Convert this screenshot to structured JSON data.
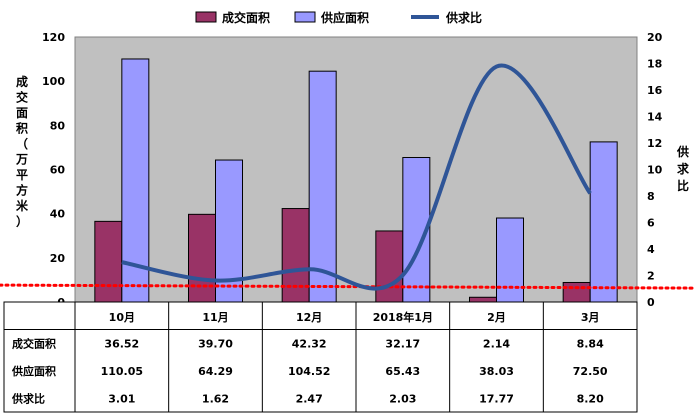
{
  "chart_data": {
    "type": "bar",
    "categories": [
      "10月",
      "11月",
      "12月",
      "2018年1月",
      "2月",
      "3月"
    ],
    "series": [
      {
        "name": "成交面积",
        "kind": "bar",
        "axis": "left",
        "color": "#993366",
        "values": [
          36.52,
          39.7,
          42.32,
          32.17,
          2.14,
          8.84
        ]
      },
      {
        "name": "供应面积",
        "kind": "bar",
        "axis": "left",
        "color": "#9999ff",
        "values": [
          110.05,
          64.29,
          104.52,
          65.43,
          38.03,
          72.5
        ]
      },
      {
        "name": "供求比",
        "kind": "line",
        "axis": "right",
        "color": "#2f5597",
        "values": [
          3.01,
          1.62,
          2.47,
          2.03,
          17.77,
          8.2
        ]
      }
    ],
    "reference_line": {
      "axis": "right",
      "value": 1.2,
      "style": "dotted",
      "color": "#ff0000"
    },
    "ylabel": "成交面积（万平方米）",
    "y2label": "供求比",
    "ylim": [
      0,
      120
    ],
    "y2lim": [
      0,
      20
    ],
    "yticks": [
      "0",
      "20",
      "40",
      "60",
      "80",
      "100",
      "120"
    ],
    "y2ticks": [
      "0",
      "2",
      "4",
      "6",
      "8",
      "10",
      "12",
      "14",
      "16",
      "18",
      "20"
    ],
    "legend_position": "top",
    "plot_background": "#c0c0c0",
    "data_table": {
      "rows": [
        {
          "label": "成交面积",
          "cells": [
            "36.52",
            "39.70",
            "42.32",
            "32.17",
            "2.14",
            "8.84"
          ]
        },
        {
          "label": "供应面积",
          "cells": [
            "110.05",
            "64.29",
            "104.52",
            "65.43",
            "38.03",
            "72.50"
          ]
        },
        {
          "label": "供求比",
          "cells": [
            "3.01",
            "1.62",
            "2.47",
            "2.03",
            "17.77",
            "8.20"
          ]
        }
      ]
    }
  }
}
